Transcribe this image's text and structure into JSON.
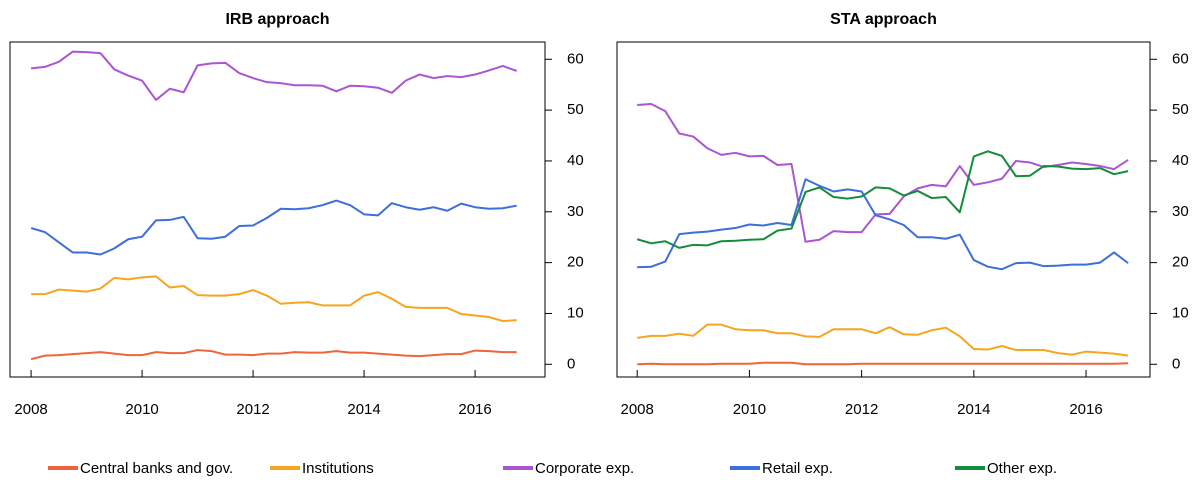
{
  "chart_data": [
    {
      "type": "line",
      "title": "IRB approach",
      "x": [
        2008,
        2008.25,
        2008.5,
        2008.75,
        2009,
        2009.25,
        2009.5,
        2009.75,
        2010,
        2010.25,
        2010.5,
        2010.75,
        2011,
        2011.25,
        2011.5,
        2011.75,
        2012,
        2012.25,
        2012.5,
        2012.75,
        2013,
        2013.25,
        2013.5,
        2013.75,
        2014,
        2014.25,
        2014.5,
        2014.75,
        2015,
        2015.25,
        2015.5,
        2015.75,
        2016,
        2016.25,
        2016.5,
        2016.75
      ],
      "series": [
        {
          "color": "#f0643c",
          "values": [
            1.0,
            1.7,
            1.8,
            2.0,
            2.2,
            2.4,
            2.1,
            1.8,
            1.8,
            2.4,
            2.2,
            2.2,
            2.8,
            2.6,
            1.9,
            1.9,
            1.8,
            2.1,
            2.1,
            2.4,
            2.3,
            2.3,
            2.6,
            2.3,
            2.3,
            2.1,
            1.9,
            1.7,
            1.6,
            1.8,
            2.0,
            2.0,
            2.7,
            2.6,
            2.4,
            2.4
          ]
        },
        {
          "color": "#f5a51e",
          "values": [
            13.8,
            13.8,
            14.7,
            14.5,
            14.3,
            14.9,
            17.0,
            16.7,
            17.1,
            17.3,
            15.1,
            15.4,
            13.6,
            13.5,
            13.5,
            13.8,
            14.6,
            13.5,
            11.9,
            12.1,
            12.2,
            11.6,
            11.6,
            11.6,
            13.5,
            14.2,
            12.9,
            11.3,
            11.1,
            11.1,
            11.1,
            9.9,
            9.6,
            9.3,
            8.5,
            8.7
          ]
        },
        {
          "color": "#aa55d2",
          "values": [
            58.2,
            58.5,
            59.5,
            61.5,
            61.4,
            61.2,
            58.0,
            56.8,
            55.8,
            52.0,
            54.2,
            53.5,
            58.8,
            59.2,
            59.3,
            57.3,
            56.3,
            55.5,
            55.3,
            54.9,
            54.9,
            54.8,
            53.7,
            54.8,
            54.7,
            54.4,
            53.4,
            55.8,
            57.0,
            56.3,
            56.7,
            56.5,
            57.0,
            57.8,
            58.7,
            57.7
          ]
        },
        {
          "color": "#3c6edc",
          "values": [
            26.8,
            26.0,
            24.0,
            22.0,
            22.0,
            21.6,
            22.8,
            24.6,
            25.1,
            28.3,
            28.4,
            29.0,
            24.8,
            24.7,
            25.1,
            27.2,
            27.3,
            28.8,
            30.6,
            30.5,
            30.7,
            31.3,
            32.2,
            31.3,
            29.5,
            29.3,
            31.7,
            30.9,
            30.4,
            30.9,
            30.2,
            31.6,
            30.9,
            30.6,
            30.7,
            31.2
          ]
        }
      ],
      "xlim": [
        2007.62,
        2017.26
      ],
      "xticks": [
        2008,
        2010,
        2012,
        2014,
        2016
      ],
      "ylim": [
        -2.5,
        63.4
      ],
      "yticks": [
        0,
        10,
        20,
        30,
        40,
        50,
        60
      ]
    },
    {
      "type": "line",
      "title": "STA approach",
      "x": [
        2008,
        2008.25,
        2008.5,
        2008.75,
        2009,
        2009.25,
        2009.5,
        2009.75,
        2010,
        2010.25,
        2010.5,
        2010.75,
        2011,
        2011.25,
        2011.5,
        2011.75,
        2012,
        2012.25,
        2012.5,
        2012.75,
        2013,
        2013.25,
        2013.5,
        2013.75,
        2014,
        2014.25,
        2014.5,
        2014.75,
        2015,
        2015.25,
        2015.5,
        2015.75,
        2016,
        2016.25,
        2016.5,
        2016.75
      ],
      "series": [
        {
          "name": "Central banks and gov.",
          "color": "#f0643c",
          "values": [
            0.0,
            0.1,
            0.0,
            0.0,
            0.0,
            0.0,
            0.1,
            0.1,
            0.1,
            0.3,
            0.3,
            0.3,
            0.0,
            0.0,
            0.0,
            0.0,
            0.1,
            0.1,
            0.1,
            0.1,
            0.1,
            0.1,
            0.1,
            0.1,
            0.1,
            0.1,
            0.1,
            0.1,
            0.1,
            0.1,
            0.1,
            0.1,
            0.1,
            0.1,
            0.1,
            0.2
          ]
        },
        {
          "name": "Institutions",
          "color": "#f5a51e",
          "values": [
            5.2,
            5.6,
            5.6,
            6.0,
            5.6,
            7.8,
            7.8,
            6.9,
            6.7,
            6.7,
            6.1,
            6.1,
            5.5,
            5.4,
            6.9,
            6.9,
            6.9,
            6.1,
            7.3,
            5.9,
            5.8,
            6.7,
            7.2,
            5.5,
            3.0,
            2.9,
            3.6,
            2.8,
            2.8,
            2.8,
            2.2,
            1.9,
            2.5,
            2.3,
            2.1,
            1.7
          ]
        },
        {
          "name": "Corporate exp.",
          "color": "#aa55d2",
          "values": [
            51.0,
            51.2,
            49.8,
            45.4,
            44.8,
            42.5,
            41.2,
            41.6,
            40.9,
            41.0,
            39.2,
            39.4,
            24.1,
            24.5,
            26.2,
            26.0,
            26.0,
            29.5,
            29.6,
            33.0,
            34.6,
            35.3,
            35.0,
            39.0,
            35.3,
            35.8,
            36.5,
            40.0,
            39.7,
            38.8,
            39.2,
            39.7,
            39.4,
            39.0,
            38.4,
            40.2
          ]
        },
        {
          "name": "Retail exp.",
          "color": "#3c6edc",
          "values": [
            19.1,
            19.2,
            20.2,
            25.6,
            25.9,
            26.1,
            26.5,
            26.8,
            27.5,
            27.3,
            27.8,
            27.4,
            36.4,
            35.1,
            34.0,
            34.4,
            34.0,
            29.3,
            28.5,
            27.4,
            25.0,
            25.0,
            24.7,
            25.5,
            20.5,
            19.2,
            18.7,
            19.9,
            20.0,
            19.3,
            19.4,
            19.6,
            19.6,
            20.0,
            22.0,
            19.9
          ]
        },
        {
          "name": "Other exp.",
          "color": "#148c3c",
          "values": [
            24.6,
            23.8,
            24.2,
            22.9,
            23.5,
            23.4,
            24.2,
            24.3,
            24.5,
            24.6,
            26.3,
            26.7,
            33.9,
            34.8,
            32.9,
            32.6,
            33.0,
            34.8,
            34.6,
            33.2,
            34.1,
            32.7,
            32.9,
            29.9,
            40.9,
            41.9,
            41.0,
            37.0,
            37.1,
            39.0,
            38.9,
            38.5,
            38.4,
            38.6,
            37.4,
            38.0
          ]
        }
      ],
      "xlim": [
        2007.64,
        2017.14
      ],
      "xticks": [
        2008,
        2010,
        2012,
        2014,
        2016
      ],
      "ylim": [
        -2.5,
        63.4
      ],
      "yticks": [
        0,
        10,
        20,
        30,
        40,
        50,
        60
      ]
    }
  ]
}
